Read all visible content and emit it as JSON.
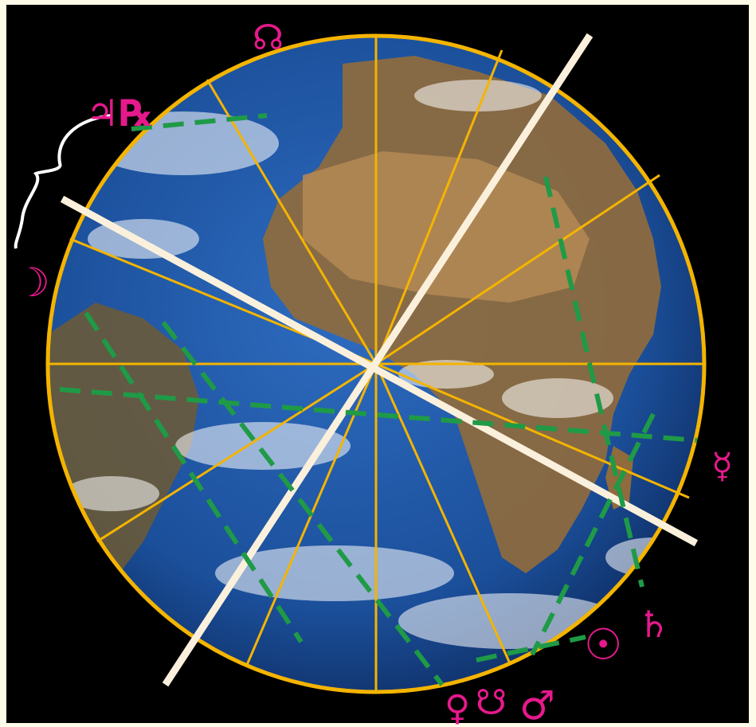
{
  "colors": {
    "background": "#000000",
    "frame": "#fffbe9",
    "house_lines": "#f4b400",
    "axis_lines": "#fbf0dc",
    "aspect_lines": "#1f9a47",
    "planet_glyphs": "#e6198c",
    "bracket": "#ffffff",
    "ocean": "#1b4f9a",
    "land": "#8f6b3d"
  },
  "glyphs": [
    {
      "id": "north-node",
      "symbol": "☊"
    },
    {
      "id": "jupiter",
      "symbol": "♃"
    },
    {
      "id": "retrograde",
      "symbol": "℞"
    },
    {
      "id": "moon",
      "symbol": "☽"
    },
    {
      "id": "mercury",
      "symbol": "☿"
    },
    {
      "id": "saturn",
      "symbol": "♄"
    },
    {
      "id": "sun",
      "symbol": "☉"
    },
    {
      "id": "venus",
      "symbol": "♀"
    },
    {
      "id": "south-node",
      "symbol": "☋"
    },
    {
      "id": "mars",
      "symbol": "♂"
    }
  ]
}
